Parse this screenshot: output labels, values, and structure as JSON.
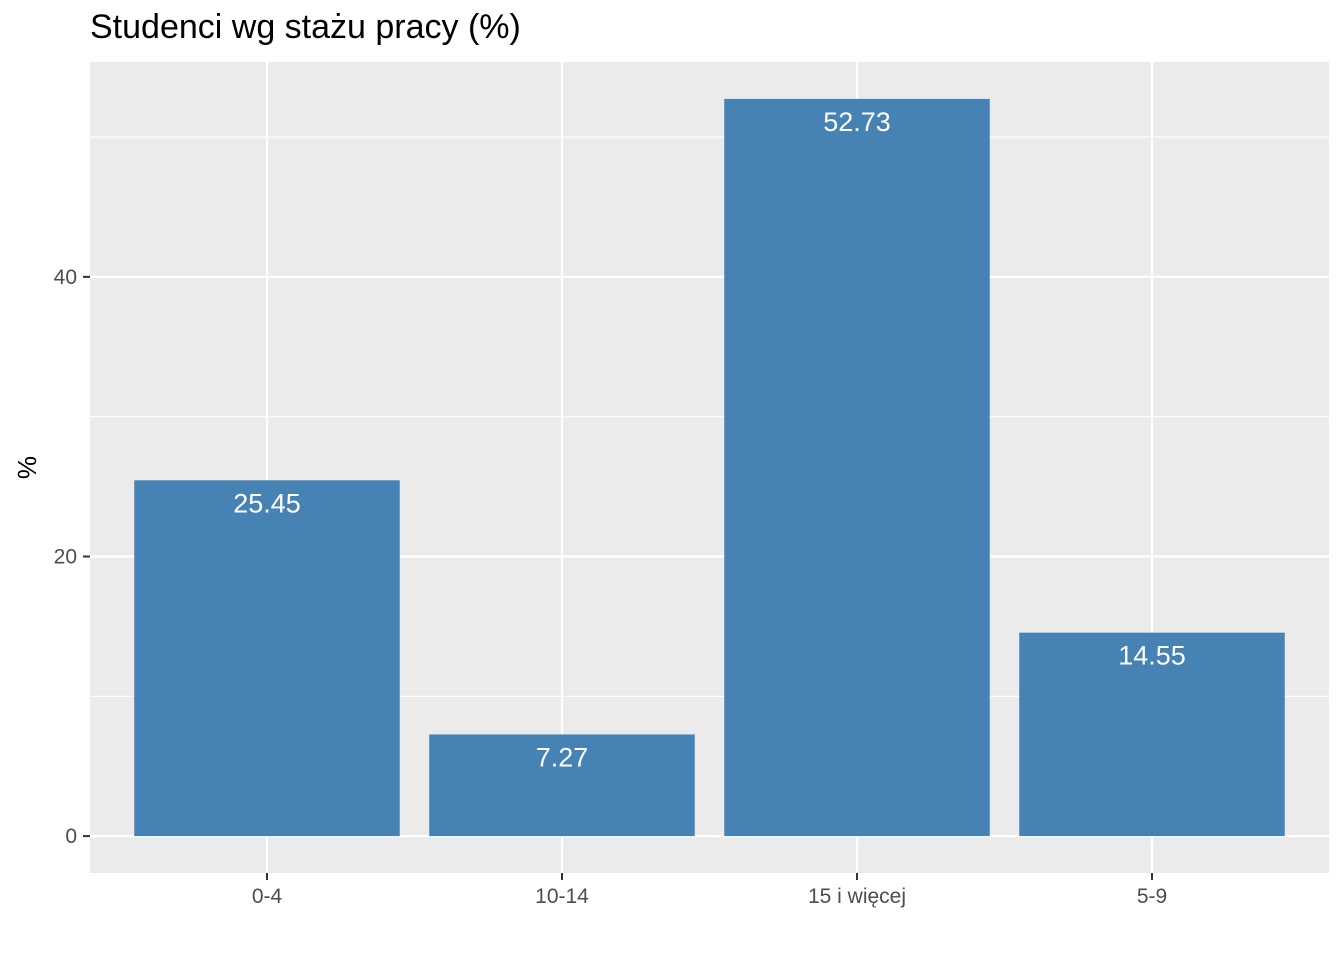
{
  "chart_data": {
    "type": "bar",
    "title": "Studenci wg stażu pracy (%)",
    "xlabel": "",
    "ylabel": "%",
    "categories": [
      "0-4",
      "10-14",
      "15 i więcej",
      "5-9"
    ],
    "values": [
      25.45,
      7.27,
      52.73,
      14.55
    ],
    "value_labels": [
      "25.45",
      "7.27",
      "52.73",
      "14.55"
    ],
    "y_ticks": [
      0,
      20,
      40
    ],
    "ylim": [
      -2.64,
      55.37
    ],
    "grid": true,
    "legend": "none",
    "colors": {
      "bar": "#4682b4",
      "panel": "#ebebeb",
      "grid": "#ffffff",
      "bar_label": "#ffffff"
    }
  }
}
